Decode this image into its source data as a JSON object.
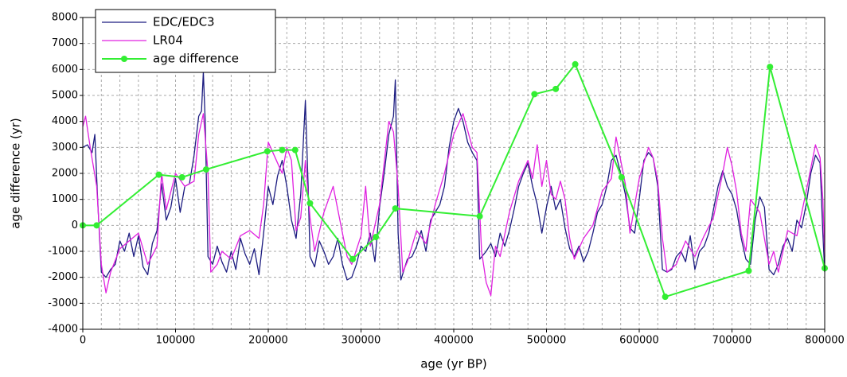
{
  "chart_data": {
    "type": "line",
    "xlabel": "age (yr BP)",
    "ylabel": "age difference (yr)",
    "xlim": [
      0,
      800000
    ],
    "ylim": [
      -4000,
      8000
    ],
    "xticks": [
      0,
      100000,
      200000,
      300000,
      400000,
      500000,
      600000,
      700000,
      800000
    ],
    "xminorticks": [
      20000,
      40000,
      60000,
      80000,
      120000,
      140000,
      160000,
      180000,
      220000,
      240000,
      260000,
      280000,
      320000,
      340000,
      360000,
      380000,
      420000,
      440000,
      460000,
      480000,
      520000,
      540000,
      560000,
      580000,
      620000,
      640000,
      660000,
      680000,
      720000,
      740000,
      760000,
      780000
    ],
    "yticks": [
      -4000,
      -3000,
      -2000,
      -1000,
      0,
      1000,
      2000,
      3000,
      4000,
      5000,
      6000,
      7000,
      8000
    ],
    "grid": true,
    "legend": "upper left",
    "series": [
      {
        "name": "EDC/EDC3",
        "color": "#1c1c80",
        "marker": false,
        "x": [
          0,
          5000,
          10000,
          13000,
          16000,
          20000,
          25000,
          30000,
          35000,
          40000,
          45000,
          50000,
          55000,
          60000,
          65000,
          70000,
          75000,
          80000,
          85000,
          90000,
          95000,
          100000,
          105000,
          110000,
          115000,
          120000,
          125000,
          128000,
          130000,
          132000,
          135000,
          140000,
          145000,
          150000,
          155000,
          160000,
          165000,
          170000,
          175000,
          180000,
          185000,
          190000,
          195000,
          200000,
          205000,
          210000,
          215000,
          220000,
          225000,
          230000,
          235000,
          240000,
          243000,
          245000,
          250000,
          255000,
          260000,
          265000,
          270000,
          275000,
          280000,
          285000,
          290000,
          295000,
          300000,
          305000,
          310000,
          315000,
          320000,
          325000,
          330000,
          335000,
          337000,
          340000,
          343000,
          350000,
          355000,
          360000,
          365000,
          370000,
          375000,
          380000,
          385000,
          390000,
          395000,
          400000,
          405000,
          410000,
          415000,
          420000,
          425000,
          428000,
          435000,
          440000,
          445000,
          450000,
          455000,
          460000,
          465000,
          470000,
          475000,
          480000,
          485000,
          490000,
          495000,
          500000,
          505000,
          510000,
          515000,
          520000,
          525000,
          530000,
          535000,
          540000,
          545000,
          550000,
          555000,
          560000,
          565000,
          570000,
          575000,
          580000,
          585000,
          590000,
          595000,
          600000,
          605000,
          610000,
          615000,
          620000,
          625000,
          630000,
          635000,
          640000,
          645000,
          650000,
          655000,
          660000,
          665000,
          670000,
          675000,
          680000,
          685000,
          690000,
          695000,
          700000,
          705000,
          710000,
          715000,
          720000,
          725000,
          730000,
          735000,
          740000,
          745000,
          750000,
          755000,
          760000,
          765000,
          770000,
          775000,
          780000,
          785000,
          790000,
          795000,
          798000,
          800000
        ],
        "values": [
          3000,
          3100,
          2800,
          3500,
          1000,
          -1800,
          -2000,
          -1700,
          -1500,
          -600,
          -1000,
          -300,
          -1200,
          -400,
          -1600,
          -1900,
          -700,
          -200,
          1600,
          200,
          700,
          1800,
          500,
          1500,
          1600,
          2700,
          4200,
          4400,
          5900,
          4000,
          -1200,
          -1500,
          -800,
          -1400,
          -1800,
          -1000,
          -1700,
          -500,
          -1100,
          -1500,
          -900,
          -1900,
          -300,
          1500,
          800,
          1900,
          2500,
          1500,
          200,
          -500,
          1200,
          4800,
          1500,
          -1200,
          -1600,
          -600,
          -1000,
          -1500,
          -1200,
          -500,
          -1500,
          -2100,
          -2000,
          -1500,
          -800,
          -1000,
          -300,
          -1400,
          700,
          2000,
          3500,
          4200,
          5600,
          -300,
          -2100,
          -1300,
          -1200,
          -800,
          -200,
          -1000,
          200,
          500,
          800,
          1500,
          3000,
          4000,
          4500,
          4000,
          3200,
          2800,
          2500,
          -1300,
          -1000,
          -700,
          -1200,
          -300,
          -800,
          -200,
          600,
          1500,
          2000,
          2400,
          1500,
          800,
          -300,
          700,
          1500,
          600,
          1000,
          -100,
          -900,
          -1200,
          -800,
          -1400,
          -1000,
          -300,
          500,
          800,
          1500,
          2500,
          2700,
          2000,
          1200,
          -100,
          -300,
          1000,
          2500,
          2800,
          2600,
          1500,
          -1700,
          -1800,
          -1700,
          -1200,
          -1000,
          -1400,
          -400,
          -1700,
          -1000,
          -800,
          -300,
          600,
          1500,
          2100,
          1500,
          1200,
          600,
          -500,
          -1300,
          -1500,
          200,
          1100,
          700,
          -1700,
          -1900,
          -1500,
          -800,
          -500,
          -1000,
          200,
          -100,
          800,
          2000,
          2700,
          2400,
          -300,
          -1800
        ]
      },
      {
        "name": "LR04",
        "color": "#e020e0",
        "marker": false,
        "x": [
          0,
          3000,
          8000,
          15000,
          20000,
          25000,
          30000,
          40000,
          50000,
          60000,
          70000,
          80000,
          85000,
          90000,
          100000,
          110000,
          120000,
          125000,
          130000,
          135000,
          138000,
          145000,
          150000,
          160000,
          170000,
          180000,
          190000,
          195000,
          200000,
          210000,
          215000,
          220000,
          225000,
          230000,
          235000,
          240000,
          245000,
          250000,
          260000,
          270000,
          280000,
          285000,
          290000,
          300000,
          305000,
          310000,
          320000,
          330000,
          335000,
          340000,
          345000,
          350000,
          360000,
          370000,
          380000,
          390000,
          400000,
          410000,
          420000,
          425000,
          430000,
          435000,
          440000,
          445000,
          450000,
          460000,
          470000,
          480000,
          485000,
          490000,
          495000,
          500000,
          505000,
          510000,
          515000,
          520000,
          525000,
          530000,
          540000,
          550000,
          560000,
          570000,
          575000,
          580000,
          585000,
          590000,
          600000,
          610000,
          615000,
          620000,
          625000,
          630000,
          640000,
          650000,
          660000,
          670000,
          680000,
          690000,
          695000,
          700000,
          705000,
          710000,
          715000,
          720000,
          730000,
          740000,
          745000,
          750000,
          760000,
          770000,
          780000,
          790000,
          795000,
          798000,
          800000
        ],
        "values": [
          3800,
          4200,
          3000,
          1500,
          -1500,
          -2600,
          -1800,
          -900,
          -600,
          -300,
          -1500,
          -800,
          2000,
          600,
          2000,
          1500,
          1700,
          3500,
          4300,
          2000,
          -1800,
          -1500,
          -1000,
          -1300,
          -400,
          -200,
          -500,
          800,
          3200,
          2400,
          2000,
          3000,
          2500,
          -200,
          300,
          2500,
          300,
          -1000,
          500,
          1500,
          -300,
          -1200,
          -1500,
          -400,
          1500,
          -800,
          800,
          4000,
          3600,
          1500,
          -1800,
          -1400,
          -200,
          -700,
          800,
          2000,
          3500,
          4300,
          3000,
          2800,
          -1000,
          -2200,
          -2700,
          -800,
          -1200,
          500,
          1700,
          2500,
          1800,
          3100,
          1500,
          2500,
          1200,
          1000,
          1700,
          1000,
          -500,
          -1300,
          -500,
          0,
          1300,
          1800,
          3400,
          2500,
          1600,
          -300,
          1800,
          3000,
          2600,
          1700,
          -500,
          -1800,
          -1500,
          -600,
          -1200,
          -400,
          300,
          2000,
          3000,
          2300,
          1300,
          -300,
          -1000,
          1000,
          500,
          -1500,
          -1000,
          -1800,
          -200,
          -400,
          1300,
          3100,
          2600,
          1000,
          -1200
        ]
      },
      {
        "name": "age difference",
        "color": "#33ee33",
        "marker": true,
        "x": [
          0,
          15000,
          82000,
          107000,
          133000,
          199000,
          215000,
          229000,
          245000,
          291000,
          316000,
          337000,
          428000,
          487000,
          510000,
          531000,
          581000,
          628000,
          718000,
          741000,
          800000
        ],
        "values": [
          0,
          0,
          1950,
          1850,
          2150,
          2850,
          2900,
          2900,
          850,
          -1300,
          -450,
          650,
          350,
          5050,
          5250,
          6200,
          1850,
          -2750,
          -1750,
          6100,
          -1650
        ]
      }
    ]
  }
}
